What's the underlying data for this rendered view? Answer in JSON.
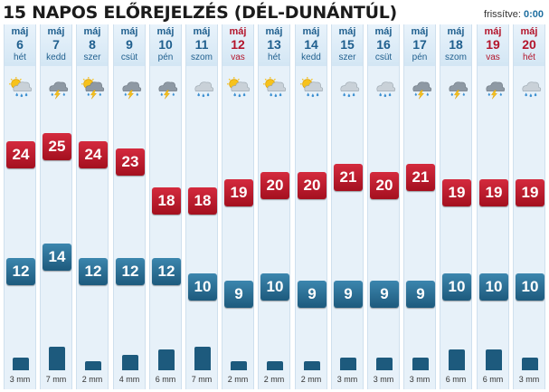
{
  "title": "15 NAPOS ELŐREJELZÉS (DÉL-DUNÁNTÚL)",
  "refresh": {
    "label": "frissítve:",
    "value": "0:00"
  },
  "colors": {
    "max_temp": "#c0192c",
    "min_temp": "#2a6e94",
    "weekend": "#b3142b",
    "header": "#1f5f8e"
  },
  "days": [
    {
      "month": "máj",
      "day": "6",
      "weekday": "hét",
      "weekend": false,
      "icon": "sun-cloud-rain-icon",
      "max": "24",
      "min": "12",
      "rain_mm": 3,
      "rain": "3 mm"
    },
    {
      "month": "máj",
      "day": "7",
      "weekday": "kedd",
      "weekend": false,
      "icon": "thunderstorm-icon",
      "max": "25",
      "min": "14",
      "rain_mm": 7,
      "rain": "7 mm"
    },
    {
      "month": "máj",
      "day": "8",
      "weekday": "szer",
      "weekend": false,
      "icon": "sun-thunderstorm-icon",
      "max": "24",
      "min": "12",
      "rain_mm": 2,
      "rain": "2 mm"
    },
    {
      "month": "máj",
      "day": "9",
      "weekday": "csüt",
      "weekend": false,
      "icon": "thunderstorm-icon",
      "max": "23",
      "min": "12",
      "rain_mm": 4,
      "rain": "4 mm"
    },
    {
      "month": "máj",
      "day": "10",
      "weekday": "pén",
      "weekend": false,
      "icon": "thunderstorm-icon",
      "max": "18",
      "min": "12",
      "rain_mm": 6,
      "rain": "6 mm"
    },
    {
      "month": "máj",
      "day": "11",
      "weekday": "szom",
      "weekend": false,
      "icon": "cloud-rain-icon",
      "max": "18",
      "min": "10",
      "rain_mm": 7,
      "rain": "7 mm"
    },
    {
      "month": "máj",
      "day": "12",
      "weekday": "vas",
      "weekend": true,
      "icon": "sun-cloud-rain-icon",
      "max": "19",
      "min": "9",
      "rain_mm": 2,
      "rain": "2 mm"
    },
    {
      "month": "máj",
      "day": "13",
      "weekday": "hét",
      "weekend": false,
      "icon": "sun-cloud-rain-icon",
      "max": "20",
      "min": "10",
      "rain_mm": 2,
      "rain": "2 mm"
    },
    {
      "month": "máj",
      "day": "14",
      "weekday": "kedd",
      "weekend": false,
      "icon": "sun-cloud-rain-icon",
      "max": "20",
      "min": "9",
      "rain_mm": 2,
      "rain": "2 mm"
    },
    {
      "month": "máj",
      "day": "15",
      "weekday": "szer",
      "weekend": false,
      "icon": "cloud-rain-icon",
      "max": "21",
      "min": "9",
      "rain_mm": 3,
      "rain": "3 mm"
    },
    {
      "month": "máj",
      "day": "16",
      "weekday": "csüt",
      "weekend": false,
      "icon": "cloud-rain-icon",
      "max": "20",
      "min": "9",
      "rain_mm": 3,
      "rain": "3 mm"
    },
    {
      "month": "máj",
      "day": "17",
      "weekday": "pén",
      "weekend": false,
      "icon": "thunderstorm-icon",
      "max": "21",
      "min": "9",
      "rain_mm": 3,
      "rain": "3 mm"
    },
    {
      "month": "máj",
      "day": "18",
      "weekday": "szom",
      "weekend": false,
      "icon": "thunderstorm-icon",
      "max": "19",
      "min": "10",
      "rain_mm": 6,
      "rain": "6 mm"
    },
    {
      "month": "máj",
      "day": "19",
      "weekday": "vas",
      "weekend": true,
      "icon": "thunderstorm-icon",
      "max": "19",
      "min": "10",
      "rain_mm": 6,
      "rain": "6 mm"
    },
    {
      "month": "máj",
      "day": "20",
      "weekday": "hét",
      "weekend": true,
      "icon": "cloud-rain-icon",
      "max": "19",
      "min": "10",
      "rain_mm": 3,
      "rain": "3 mm"
    }
  ]
}
